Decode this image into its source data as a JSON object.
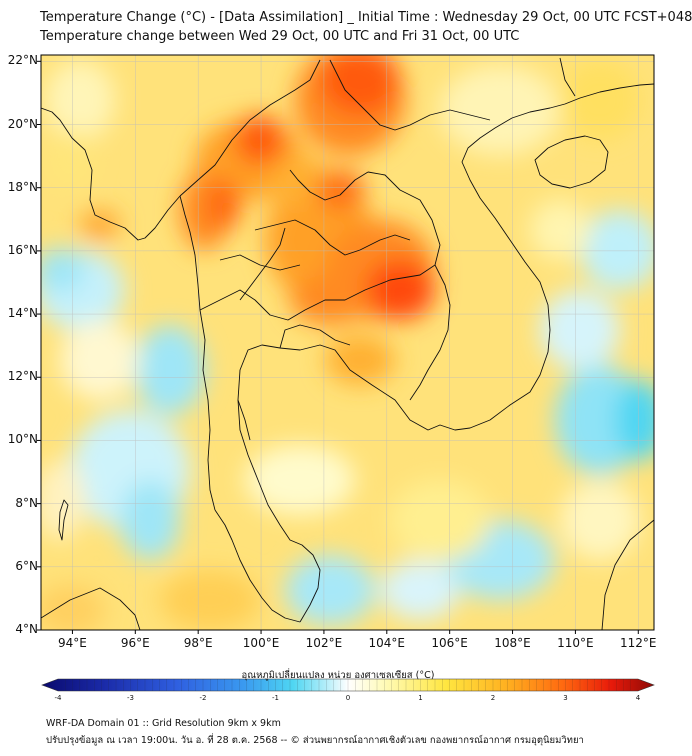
{
  "header": {
    "title_line1": "Temperature Change (°C) - [Data Assimilation] _ Initial Time : Wednesday 29 Oct, 00 UTC FCST+048",
    "title_line2": "Temperature change between Wed 29 Oct, 00 UTC and Fri 31 Oct, 00 UTC"
  },
  "map": {
    "lat_labels": [
      "22°N",
      "20°N",
      "18°N",
      "16°N",
      "14°N",
      "12°N",
      "10°N",
      "8°N",
      "6°N",
      "4°N"
    ],
    "lon_labels": [
      "94°E",
      "96°E",
      "98°E",
      "100°E",
      "102°E",
      "104°E",
      "106°E",
      "108°E",
      "110°E",
      "112°E"
    ],
    "extent": {
      "lon_min": 93.0,
      "lon_max": 112.5,
      "lat_min": 4.0,
      "lat_max": 22.2
    }
  },
  "colorbar": {
    "title": "อุณหภูมิเปลี่ยนแปลง หน่วย องศาเซลเซียส (°C)",
    "tick_labels": [
      "-4",
      "-3",
      "-2",
      "-1",
      "0",
      "1",
      "2",
      "3",
      "4"
    ],
    "range": [
      -4,
      4
    ],
    "colors": [
      "#0a0a6e",
      "#1a2aa8",
      "#2f5fe0",
      "#3a9af0",
      "#4fd6f2",
      "#bff0fa",
      "#ffffff",
      "#fffbb8",
      "#ffe640",
      "#ffb020",
      "#ff6a10",
      "#e81a0a",
      "#8e0a06"
    ]
  },
  "footer": {
    "line1": "WRF-DA Domain 01 :: Grid Resolution 9km x 9km",
    "line2": "ปรับปรุงข้อมูล ณ เวลา 19:00น. วัน อ. ที่ 28 ต.ค. 2568 -- © ส่วนพยากรณ์อากาศเชิงตัวเลข กองพยากรณ์อากาศ กรมอุตุนิยมวิทยา"
  }
}
